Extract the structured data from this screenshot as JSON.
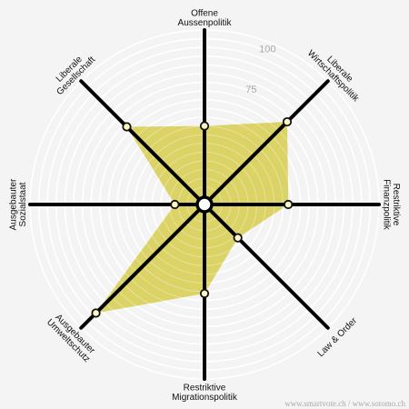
{
  "chart_data": {
    "type": "radar",
    "rmax": 100,
    "ring_step": 5,
    "tick_values": [
      75,
      100
    ],
    "tick_labels": [
      "75",
      "100"
    ],
    "axes": [
      {
        "label": "Offene\nAussenpolitik",
        "value": 45
      },
      {
        "label": "Liberale\nWirtschaftspolitik",
        "value": 67
      },
      {
        "label": "Restriktive\nFinanzpolitik",
        "value": 48
      },
      {
        "label": "Law & Order",
        "value": 27
      },
      {
        "label": "Restriktive\nMigrationspolitik",
        "value": 51
      },
      {
        "label": "Ausgebauter\nUmweltschutz",
        "value": 88
      },
      {
        "label": "Ausgebauter\nSozialstaat",
        "value": 17
      },
      {
        "label": "Liberale\nGesellschaft",
        "value": 63
      }
    ],
    "colors": {
      "background": "#f4f4f4",
      "rings": "#ffffff",
      "fill": "#d8cf59",
      "axes": "#000000",
      "marker_fill": "#fbf6c8"
    }
  },
  "footer": "www.smartvote.ch / www.sotomo.ch"
}
